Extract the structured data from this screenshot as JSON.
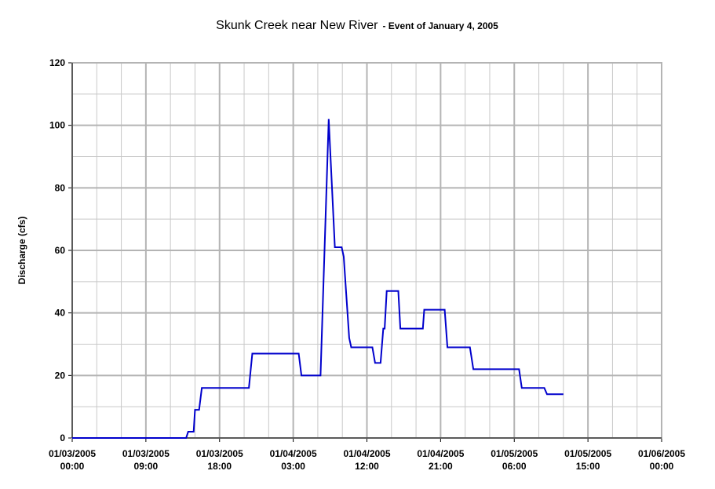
{
  "chart_data": {
    "type": "line",
    "title": "Skunk Creek near New River",
    "subtitle": "- Event of January 4, 2005",
    "y_label": "Discharge (cfs)",
    "x": [
      "2005-01-03T00:00",
      "2005-01-03T13:55",
      "2005-01-03T14:10",
      "2005-01-03T14:50",
      "2005-01-03T15:00",
      "2005-01-03T15:30",
      "2005-01-03T15:50",
      "2005-01-03T21:35",
      "2005-01-03T22:00",
      "2005-01-04T03:40",
      "2005-01-04T04:00",
      "2005-01-04T06:20",
      "2005-01-04T07:20",
      "2005-01-04T08:05",
      "2005-01-04T08:55",
      "2005-01-04T09:10",
      "2005-01-04T09:50",
      "2005-01-04T10:05",
      "2005-01-04T12:40",
      "2005-01-04T13:00",
      "2005-01-04T13:40",
      "2005-01-04T14:00",
      "2005-01-04T14:10",
      "2005-01-04T14:25",
      "2005-01-04T15:50",
      "2005-01-04T16:05",
      "2005-01-04T18:50",
      "2005-01-04T19:00",
      "2005-01-04T21:30",
      "2005-01-04T21:50",
      "2005-01-05T00:35",
      "2005-01-05T01:00",
      "2005-01-05T06:35",
      "2005-01-05T06:55",
      "2005-01-05T09:40",
      "2005-01-05T10:00",
      "2005-01-05T12:00"
    ],
    "series": [
      {
        "name": "Discharge",
        "color": "#0000cc",
        "values": [
          0,
          0,
          2,
          2,
          9,
          9,
          16,
          16,
          27,
          27,
          20,
          20,
          102,
          61,
          61,
          58,
          32,
          29,
          29,
          24,
          24,
          35,
          35,
          47,
          47,
          35,
          35,
          41,
          41,
          29,
          29,
          22,
          22,
          16,
          16,
          14,
          14
        ]
      }
    ],
    "xlim": [
      "2005-01-03T00:00",
      "2005-01-06T00:00"
    ],
    "xticks": [
      {
        "value": "2005-01-03T00:00",
        "label": "01/03/2005 00:00"
      },
      {
        "value": "2005-01-03T09:00",
        "label": "01/03/2005 09:00"
      },
      {
        "value": "2005-01-03T18:00",
        "label": "01/03/2005 18:00"
      },
      {
        "value": "2005-01-04T03:00",
        "label": "01/04/2005 03:00"
      },
      {
        "value": "2005-01-04T12:00",
        "label": "01/04/2005 12:00"
      },
      {
        "value": "2005-01-04T21:00",
        "label": "01/04/2005 21:00"
      },
      {
        "value": "2005-01-05T06:00",
        "label": "01/05/2005 06:00"
      },
      {
        "value": "2005-01-05T15:00",
        "label": "01/05/2005 15:00"
      },
      {
        "value": "2005-01-06T00:00",
        "label": "01/06/2005 00:00"
      }
    ],
    "ylim": [
      0,
      120
    ],
    "yticks": [
      0,
      20,
      40,
      60,
      80,
      100,
      120
    ],
    "grid": true
  }
}
